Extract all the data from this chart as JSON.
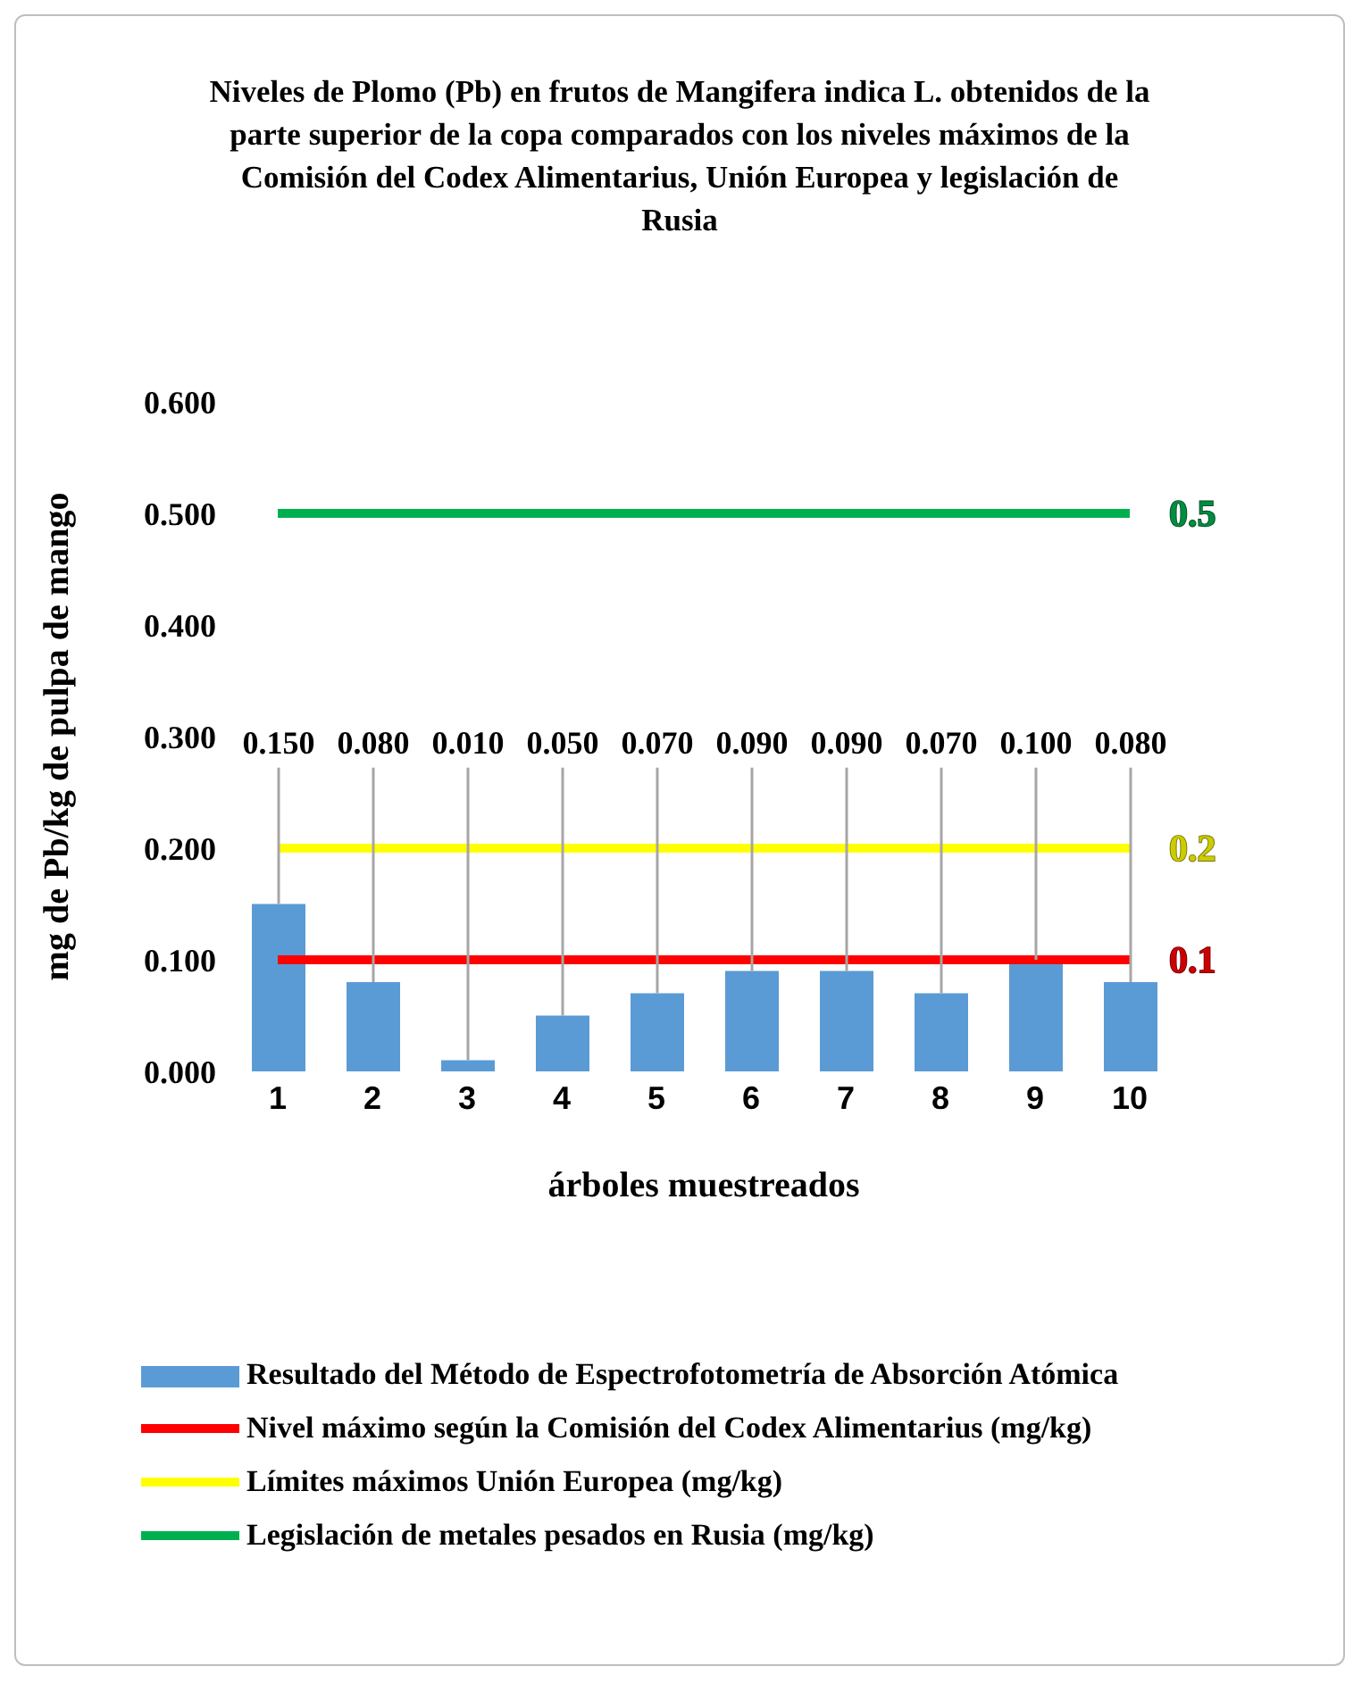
{
  "chart_data": {
    "type": "bar",
    "title": "Niveles de Plomo (Pb) en frutos de Mangifera indica L. obtenidos de la parte superior de la copa comparados con los niveles máximos de la Comisión del Codex Alimentarius, Unión Europea y legislación de Rusia",
    "xlabel": "árboles muestreados",
    "ylabel": "mg de Pb/kg de pulpa de mango",
    "categories": [
      "1",
      "2",
      "3",
      "4",
      "5",
      "6",
      "7",
      "8",
      "9",
      "10"
    ],
    "ylim": [
      0,
      0.6
    ],
    "yticks": [
      {
        "value": 0,
        "label": "0.000"
      },
      {
        "value": 0.1,
        "label": "0.100"
      },
      {
        "value": 0.2,
        "label": "0.200"
      },
      {
        "value": 0.3,
        "label": "0.300"
      },
      {
        "value": 0.4,
        "label": "0.400"
      },
      {
        "value": 0.5,
        "label": "0.500"
      },
      {
        "value": 0.6,
        "label": "0.600"
      }
    ],
    "grid": false,
    "legend": "bottom",
    "marker": "none",
    "series": [
      {
        "name": "Resultado del Método de Espectrofotometría de Absorción Atómica",
        "color": "#5b9bd5",
        "values": [
          0.15,
          0.08,
          0.01,
          0.05,
          0.07,
          0.09,
          0.09,
          0.07,
          0.1,
          0.08
        ],
        "value_labels": [
          "0.150",
          "0.080",
          "0.010",
          "0.050",
          "0.070",
          "0.090",
          "0.090",
          "0.070",
          "0.100",
          "0.080"
        ]
      },
      {
        "name": "Nivel máximo según la Comisión del Codex Alimentarius (mg/kg)",
        "type": "line",
        "color": "#ff0000",
        "values": [
          0.1,
          0.1,
          0.1,
          0.1,
          0.1,
          0.1,
          0.1,
          0.1,
          0.1,
          0.1
        ],
        "value_labels": [
          null,
          null,
          null,
          null,
          null,
          null,
          null,
          null,
          null,
          "0.1"
        ]
      },
      {
        "name": "Límites máximos Unión Europea (mg/kg)",
        "type": "line",
        "color": "#ffff00",
        "values": [
          0.2,
          0.2,
          0.2,
          0.2,
          0.2,
          0.2,
          0.2,
          0.2,
          0.2,
          0.2
        ],
        "value_labels": [
          null,
          null,
          null,
          null,
          null,
          null,
          null,
          null,
          null,
          "0.2"
        ]
      },
      {
        "name": "Legislación de metales pesados en Rusia (mg/kg)",
        "type": "line",
        "color": "#00b050",
        "values": [
          0.5,
          0.5,
          0.5,
          0.5,
          0.5,
          0.5,
          0.5,
          0.5,
          0.5,
          0.5
        ],
        "value_labels": [
          null,
          null,
          null,
          null,
          null,
          null,
          null,
          null,
          null,
          "0.5"
        ]
      }
    ]
  }
}
